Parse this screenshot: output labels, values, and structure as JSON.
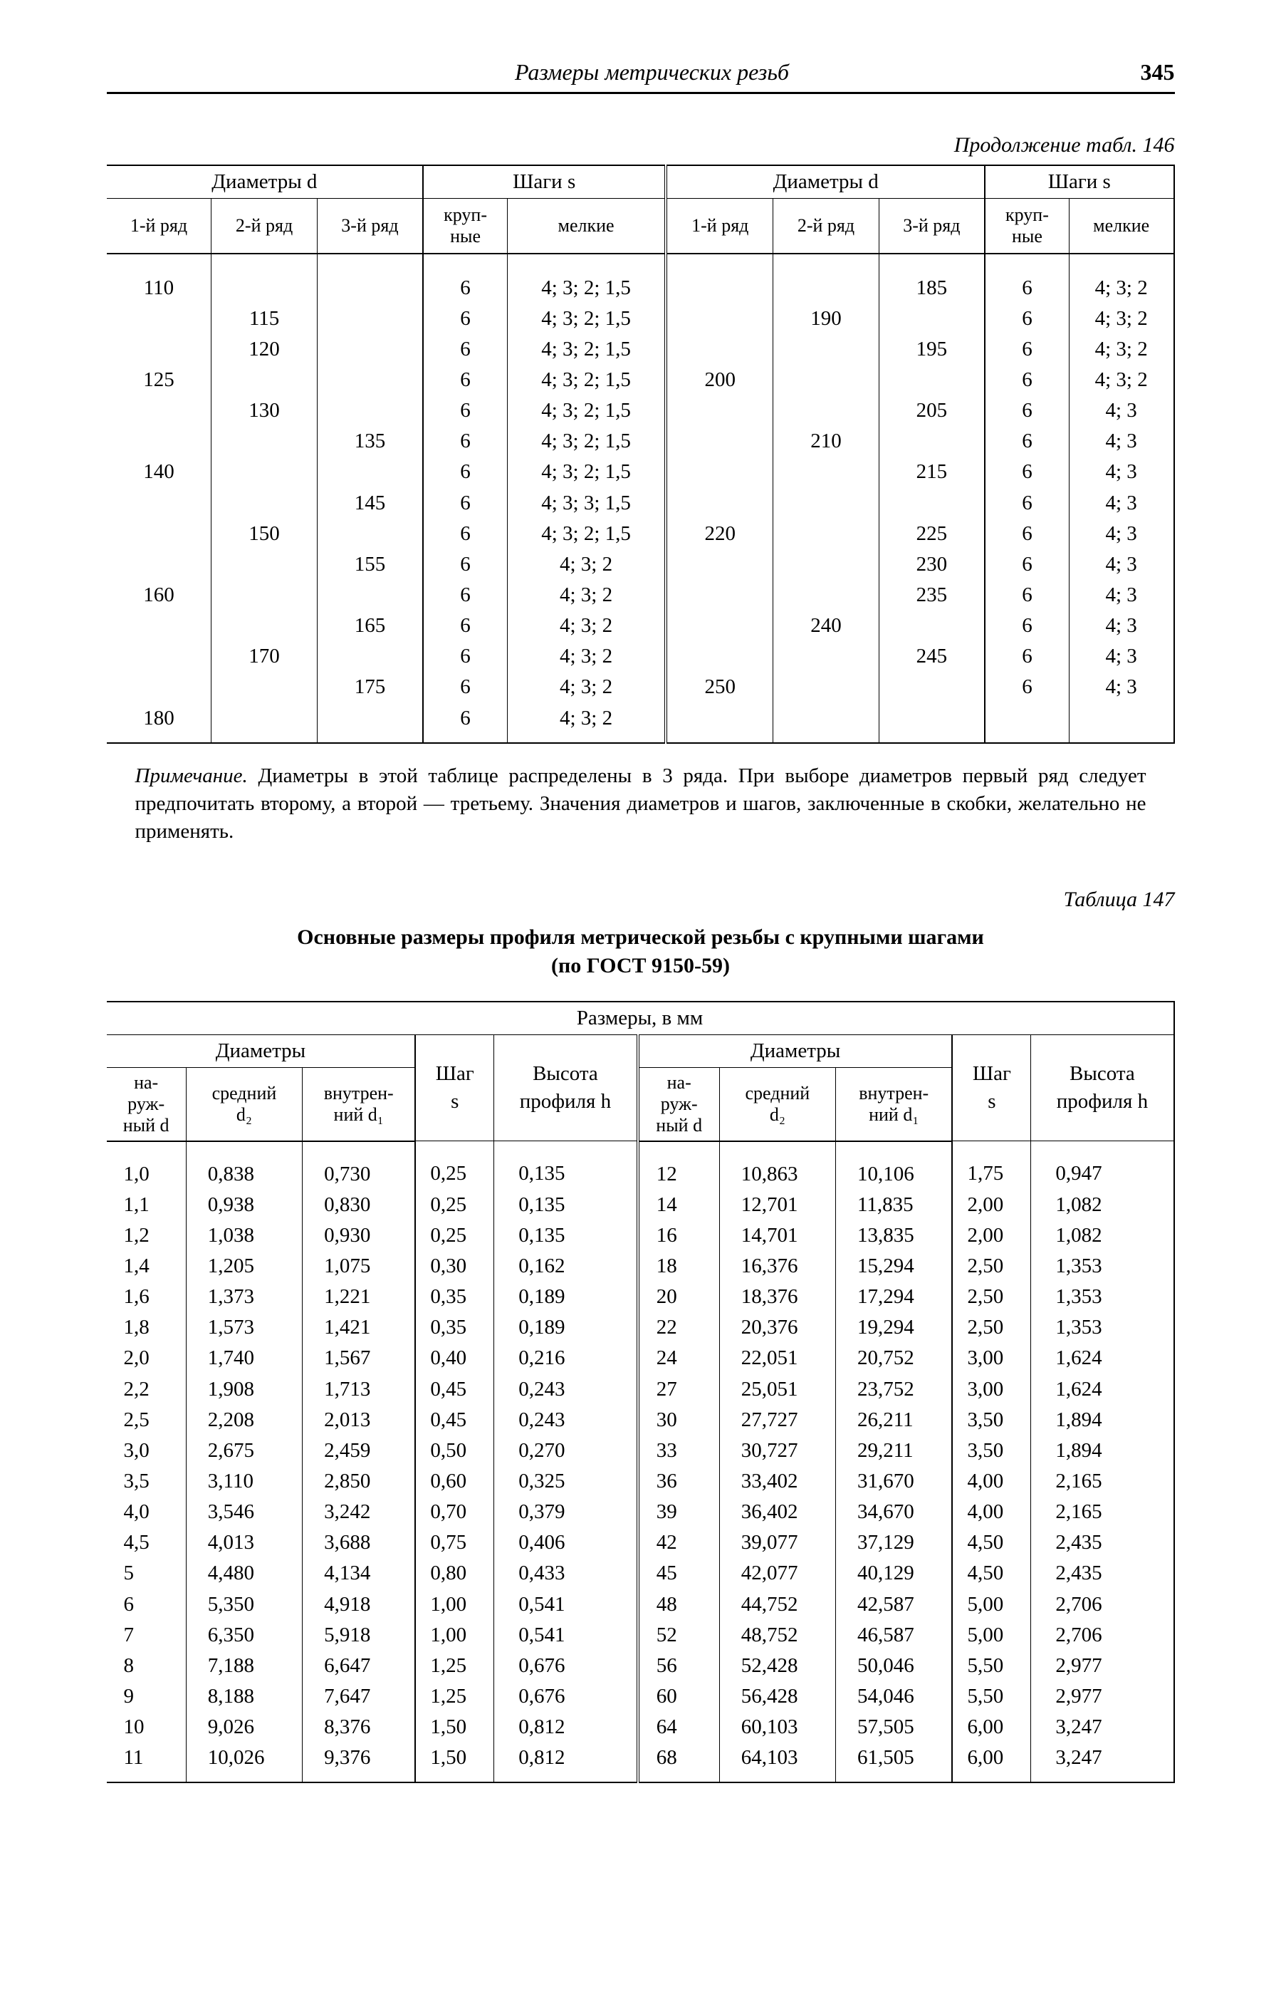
{
  "header": {
    "title": "Размеры метрических резьб",
    "page": "345"
  },
  "t146": {
    "cont": "Продолжение табл. 146",
    "groups": {
      "d": "Диаметры d",
      "s": "Шаги s"
    },
    "cols": {
      "r1": "1-й ряд",
      "r2": "2-й ряд",
      "r3": "3-й ряд",
      "big": "круп-\nные",
      "small": "мелкие"
    },
    "rows": [
      {
        "l": [
          "110",
          "",
          "",
          "6",
          "4; 3; 2; 1,5"
        ],
        "r": [
          "",
          "",
          "185",
          "6",
          "4; 3; 2"
        ]
      },
      {
        "l": [
          "",
          "115",
          "",
          "6",
          "4; 3; 2; 1,5"
        ],
        "r": [
          "",
          "190",
          "",
          "6",
          "4; 3; 2"
        ]
      },
      {
        "l": [
          "",
          "120",
          "",
          "6",
          "4; 3; 2; 1,5"
        ],
        "r": [
          "",
          "",
          "195",
          "6",
          "4; 3; 2"
        ]
      },
      {
        "l": [
          "125",
          "",
          "",
          "6",
          "4; 3; 2; 1,5"
        ],
        "r": [
          "200",
          "",
          "",
          "6",
          "4; 3; 2"
        ]
      },
      {
        "l": [
          "",
          "130",
          "",
          "6",
          "4; 3; 2; 1,5"
        ],
        "r": [
          "",
          "",
          "205",
          "6",
          "4; 3"
        ]
      },
      {
        "l": [
          "",
          "",
          "135",
          "6",
          "4; 3; 2; 1,5"
        ],
        "r": [
          "",
          "210",
          "",
          "6",
          "4; 3"
        ]
      },
      {
        "l": [
          "140",
          "",
          "",
          "6",
          "4; 3; 2; 1,5"
        ],
        "r": [
          "",
          "",
          "215",
          "6",
          "4; 3"
        ]
      },
      {
        "l": [
          "",
          "",
          "145",
          "6",
          "4; 3; 3; 1,5"
        ],
        "r": [
          "",
          "",
          "",
          "6",
          "4; 3"
        ]
      },
      {
        "l": [
          "",
          "150",
          "",
          "6",
          "4; 3; 2; 1,5"
        ],
        "r": [
          "220",
          "",
          "225",
          "6",
          "4; 3"
        ]
      },
      {
        "l": [
          "",
          "",
          "155",
          "6",
          "4; 3; 2"
        ],
        "r": [
          "",
          "",
          "230",
          "6",
          "4; 3"
        ]
      },
      {
        "l": [
          "160",
          "",
          "",
          "6",
          "4; 3; 2"
        ],
        "r": [
          "",
          "",
          "235",
          "6",
          "4; 3"
        ]
      },
      {
        "l": [
          "",
          "",
          "165",
          "6",
          "4; 3; 2"
        ],
        "r": [
          "",
          "240",
          "",
          "6",
          "4; 3"
        ]
      },
      {
        "l": [
          "",
          "170",
          "",
          "6",
          "4; 3; 2"
        ],
        "r": [
          "",
          "",
          "245",
          "6",
          "4; 3"
        ]
      },
      {
        "l": [
          "",
          "",
          "175",
          "6",
          "4; 3; 2"
        ],
        "r": [
          "250",
          "",
          "",
          "6",
          "4; 3"
        ]
      },
      {
        "l": [
          "180",
          "",
          "",
          "6",
          "4; 3; 2"
        ],
        "r": [
          "",
          "",
          "",
          "",
          ""
        ]
      }
    ],
    "note_lead": "Примечание.",
    "note_body": " Диаметры в этой таблице распределены в 3 ряда. При выборе диаметров первый ряд следует предпочитать второму, а второй — третьему. Значения диаметров и шагов, заключенные в скобки, желательно не применять."
  },
  "t147": {
    "label": "Таблица 147",
    "title": "Основные размеры профиля метрической резьбы с крупными шагами\n(по ГОСТ 9150-59)",
    "top": "Размеры, в мм",
    "diam": "Диаметры",
    "cols": {
      "d": "на-\nруж-\nный d",
      "d2": "средний\nd₂",
      "d1": "внутрен-\nний d₁",
      "s": "Шаг\ns",
      "h": "Высота\nпрофиля h"
    },
    "rows": [
      {
        "l": [
          "1,0",
          "0,838",
          "0,730",
          "0,25",
          "0,135"
        ],
        "r": [
          "12",
          "10,863",
          "10,106",
          "1,75",
          "0,947"
        ]
      },
      {
        "l": [
          "1,1",
          "0,938",
          "0,830",
          "0,25",
          "0,135"
        ],
        "r": [
          "14",
          "12,701",
          "11,835",
          "2,00",
          "1,082"
        ]
      },
      {
        "l": [
          "1,2",
          "1,038",
          "0,930",
          "0,25",
          "0,135"
        ],
        "r": [
          "16",
          "14,701",
          "13,835",
          "2,00",
          "1,082"
        ]
      },
      {
        "l": [
          "1,4",
          "1,205",
          "1,075",
          "0,30",
          "0,162"
        ],
        "r": [
          "18",
          "16,376",
          "15,294",
          "2,50",
          "1,353"
        ]
      },
      {
        "l": [
          "1,6",
          "1,373",
          "1,221",
          "0,35",
          "0,189"
        ],
        "r": [
          "20",
          "18,376",
          "17,294",
          "2,50",
          "1,353"
        ]
      },
      {
        "l": [
          "1,8",
          "1,573",
          "1,421",
          "0,35",
          "0,189"
        ],
        "r": [
          "22",
          "20,376",
          "19,294",
          "2,50",
          "1,353"
        ]
      },
      {
        "l": [
          "2,0",
          "1,740",
          "1,567",
          "0,40",
          "0,216"
        ],
        "r": [
          "24",
          "22,051",
          "20,752",
          "3,00",
          "1,624"
        ]
      },
      {
        "l": [
          "2,2",
          "1,908",
          "1,713",
          "0,45",
          "0,243"
        ],
        "r": [
          "27",
          "25,051",
          "23,752",
          "3,00",
          "1,624"
        ]
      },
      {
        "l": [
          "2,5",
          "2,208",
          "2,013",
          "0,45",
          "0,243"
        ],
        "r": [
          "30",
          "27,727",
          "26,211",
          "3,50",
          "1,894"
        ]
      },
      {
        "l": [
          "3,0",
          "2,675",
          "2,459",
          "0,50",
          "0,270"
        ],
        "r": [
          "33",
          "30,727",
          "29,211",
          "3,50",
          "1,894"
        ]
      },
      {
        "l": [
          "3,5",
          "3,110",
          "2,850",
          "0,60",
          "0,325"
        ],
        "r": [
          "36",
          "33,402",
          "31,670",
          "4,00",
          "2,165"
        ]
      },
      {
        "l": [
          "4,0",
          "3,546",
          "3,242",
          "0,70",
          "0,379"
        ],
        "r": [
          "39",
          "36,402",
          "34,670",
          "4,00",
          "2,165"
        ]
      },
      {
        "l": [
          "4,5",
          "4,013",
          "3,688",
          "0,75",
          "0,406"
        ],
        "r": [
          "42",
          "39,077",
          "37,129",
          "4,50",
          "2,435"
        ]
      },
      {
        "l": [
          "5",
          "4,480",
          "4,134",
          "0,80",
          "0,433"
        ],
        "r": [
          "45",
          "42,077",
          "40,129",
          "4,50",
          "2,435"
        ]
      },
      {
        "l": [
          "6",
          "5,350",
          "4,918",
          "1,00",
          "0,541"
        ],
        "r": [
          "48",
          "44,752",
          "42,587",
          "5,00",
          "2,706"
        ]
      },
      {
        "l": [
          "7",
          "6,350",
          "5,918",
          "1,00",
          "0,541"
        ],
        "r": [
          "52",
          "48,752",
          "46,587",
          "5,00",
          "2,706"
        ]
      },
      {
        "l": [
          "8",
          "7,188",
          "6,647",
          "1,25",
          "0,676"
        ],
        "r": [
          "56",
          "52,428",
          "50,046",
          "5,50",
          "2,977"
        ]
      },
      {
        "l": [
          "9",
          "8,188",
          "7,647",
          "1,25",
          "0,676"
        ],
        "r": [
          "60",
          "56,428",
          "54,046",
          "5,50",
          "2,977"
        ]
      },
      {
        "l": [
          "10",
          "9,026",
          "8,376",
          "1,50",
          "0,812"
        ],
        "r": [
          "64",
          "60,103",
          "57,505",
          "6,00",
          "3,247"
        ]
      },
      {
        "l": [
          "11",
          "10,026",
          "9,376",
          "1,50",
          "0,812"
        ],
        "r": [
          "68",
          "64,103",
          "61,505",
          "6,00",
          "3,247"
        ]
      }
    ]
  }
}
